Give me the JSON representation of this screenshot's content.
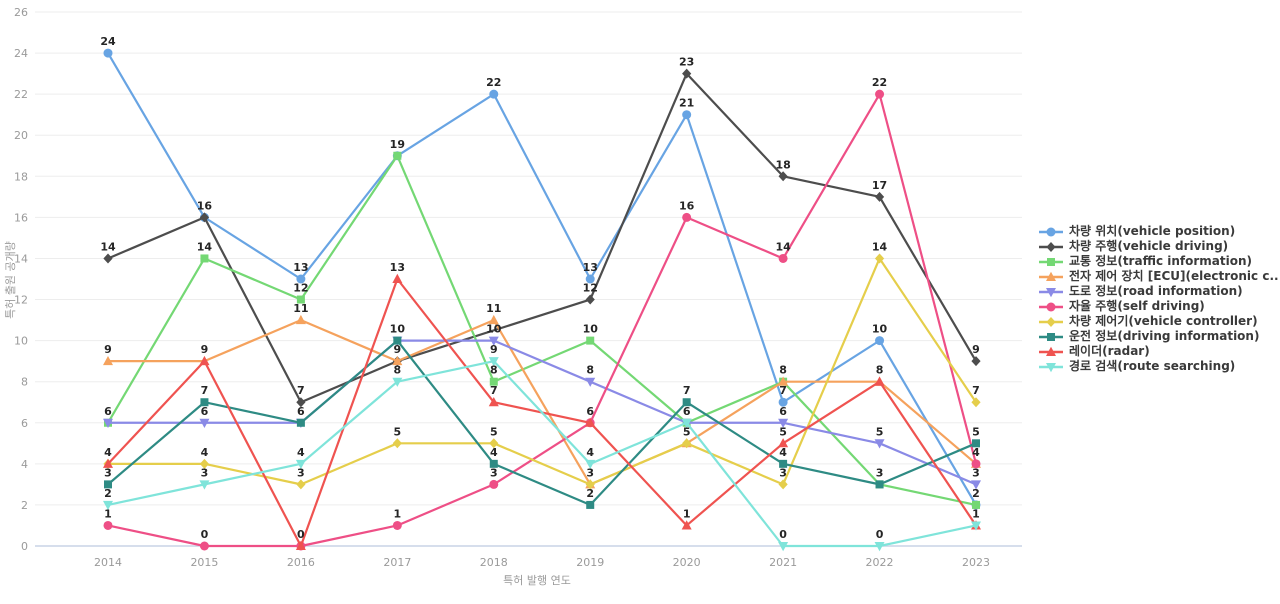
{
  "chart_data": {
    "type": "line",
    "title": "",
    "xlabel": "특허 발행 연도",
    "ylabel": "특허 출원 공개량",
    "x": [
      "2014",
      "2015",
      "2016",
      "2017",
      "2018",
      "2019",
      "2020",
      "2021",
      "2022",
      "2023"
    ],
    "ylim": [
      0,
      26
    ],
    "yticks": [
      0,
      2,
      4,
      6,
      8,
      10,
      12,
      14,
      16,
      18,
      20,
      22,
      24,
      26
    ],
    "grid": true,
    "legend_position": "right",
    "axis_colors": {
      "grid": "#ededed",
      "zero_line": "#c9d3e6",
      "tick_text": "#9a9a9a"
    },
    "series": [
      {
        "name": "차량 위치(vehicle position)",
        "color": "#68a4e3",
        "marker": "circle",
        "values": [
          24,
          16,
          13,
          19,
          22,
          13,
          21,
          7,
          10,
          2
        ]
      },
      {
        "name": "차량 주행(vehicle driving)",
        "color": "#4d4d4d",
        "marker": "diamond",
        "values": [
          14,
          16,
          7,
          9,
          null,
          12,
          23,
          18,
          17,
          9
        ]
      },
      {
        "name": "교통 정보(traffic information)",
        "color": "#74d874",
        "marker": "square",
        "values": [
          6,
          14,
          12,
          19,
          8,
          10,
          6,
          8,
          3,
          2
        ]
      },
      {
        "name": "전자 제어 장치 [ECU](electronic c...",
        "color": "#f5a25d",
        "marker": "triangle-up",
        "values": [
          9,
          9,
          11,
          9,
          11,
          3,
          5,
          8,
          8,
          4
        ]
      },
      {
        "name": "도로 정보(road information)",
        "color": "#8a8ae6",
        "marker": "triangle-down",
        "values": [
          6,
          6,
          6,
          10,
          10,
          8,
          6,
          6,
          5,
          3
        ]
      },
      {
        "name": "자율 주행(self driving)",
        "color": "#ee4f86",
        "marker": "circle",
        "values": [
          1,
          0,
          0,
          1,
          3,
          6,
          16,
          14,
          22,
          4
        ]
      },
      {
        "name": "차량 제어기(vehicle controller)",
        "color": "#e5ce4b",
        "marker": "diamond",
        "values": [
          4,
          4,
          3,
          5,
          5,
          3,
          5,
          3,
          14,
          7
        ]
      },
      {
        "name": "운전 정보(driving information)",
        "color": "#2e8b84",
        "marker": "square",
        "values": [
          3,
          7,
          6,
          10,
          4,
          2,
          7,
          4,
          3,
          5
        ]
      },
      {
        "name": "레이더(radar)",
        "color": "#ef5350",
        "marker": "triangle-up",
        "values": [
          4,
          9,
          0,
          13,
          7,
          6,
          1,
          5,
          8,
          1
        ]
      },
      {
        "name": "경로 검색(route searching)",
        "color": "#7fe4da",
        "marker": "triangle-down",
        "values": [
          2,
          3,
          4,
          8,
          9,
          4,
          6,
          0,
          0,
          1
        ]
      }
    ]
  }
}
